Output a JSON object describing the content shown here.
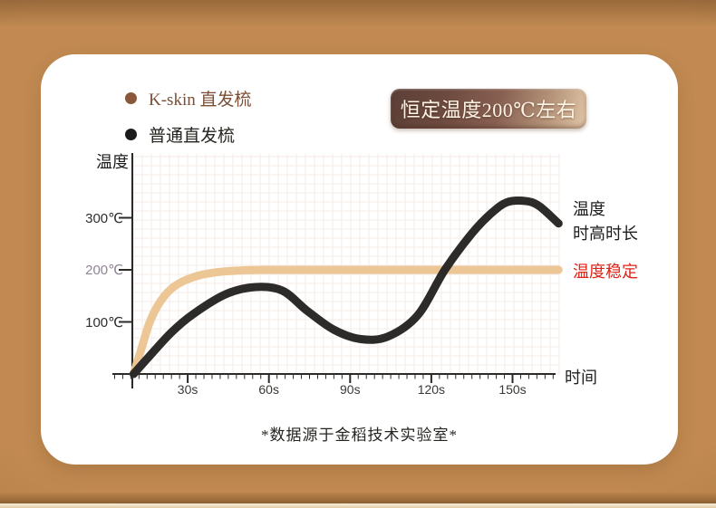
{
  "page": {
    "background_color": "#c28a52",
    "card_color": "#ffffff"
  },
  "legend": {
    "items": [
      {
        "label": "K-skin 直发梳",
        "color": "#8a573a",
        "text_color": "#7b4f37"
      },
      {
        "label": "普通直发梳",
        "color": "#1c1b19",
        "text_color": "#26241f"
      }
    ]
  },
  "badge": {
    "label": "恒定温度200℃左右"
  },
  "chart_data": {
    "type": "line",
    "title": "",
    "xlabel": "时间",
    "ylabel": "温度",
    "x_unit": "s",
    "y_unit": "℃",
    "xlim": [
      0,
      170
    ],
    "ylim": [
      0,
      420
    ],
    "grid": true,
    "legend_position": "top-left",
    "x_tick_values": [
      30,
      60,
      90,
      120,
      150
    ],
    "x_tick_labels": [
      "30s",
      "60s",
      "90s",
      "120s",
      "150s"
    ],
    "y_tick_values": [
      100,
      200,
      300
    ],
    "y_tick_labels": [
      "100℃",
      "200℃",
      "300℃"
    ],
    "y_tick_colors": [
      "#2f2e2c",
      "#8e8494",
      "#2f2e2c"
    ],
    "series": [
      {
        "name": "K-skin 直发梳",
        "color": "#ecc795",
        "points": [
          [
            10,
            0
          ],
          [
            13,
            50
          ],
          [
            16,
            100
          ],
          [
            20,
            140
          ],
          [
            25,
            168
          ],
          [
            32,
            186
          ],
          [
            40,
            195
          ],
          [
            50,
            199
          ],
          [
            60,
            200
          ],
          [
            80,
            200
          ],
          [
            100,
            200
          ],
          [
            120,
            200
          ],
          [
            140,
            200
          ],
          [
            167,
            200
          ]
        ]
      },
      {
        "name": "普通直发梳",
        "color": "#2d2b29",
        "points": [
          [
            10,
            0
          ],
          [
            16,
            35
          ],
          [
            24,
            80
          ],
          [
            32,
            115
          ],
          [
            44,
            153
          ],
          [
            55,
            167
          ],
          [
            65,
            160
          ],
          [
            74,
            122
          ],
          [
            84,
            85
          ],
          [
            94,
            67
          ],
          [
            104,
            72
          ],
          [
            115,
            113
          ],
          [
            125,
            200
          ],
          [
            135,
            270
          ],
          [
            142,
            308
          ],
          [
            148,
            330
          ],
          [
            155,
            332
          ],
          [
            160,
            322
          ],
          [
            167,
            289
          ]
        ]
      }
    ],
    "annotations": [
      {
        "text": "温度\n时高时长",
        "series": "普通直发梳",
        "color": "#1f1e1c"
      },
      {
        "text": "温度稳定",
        "series": "K-skin 直发梳",
        "color": "#e02318"
      }
    ]
  },
  "annotation_labels": {
    "unstable_line1": "温度",
    "unstable_line2": "时高时长",
    "stable": "温度稳定"
  },
  "footer": {
    "source_note": "*数据源于金稻技术实验室*"
  }
}
